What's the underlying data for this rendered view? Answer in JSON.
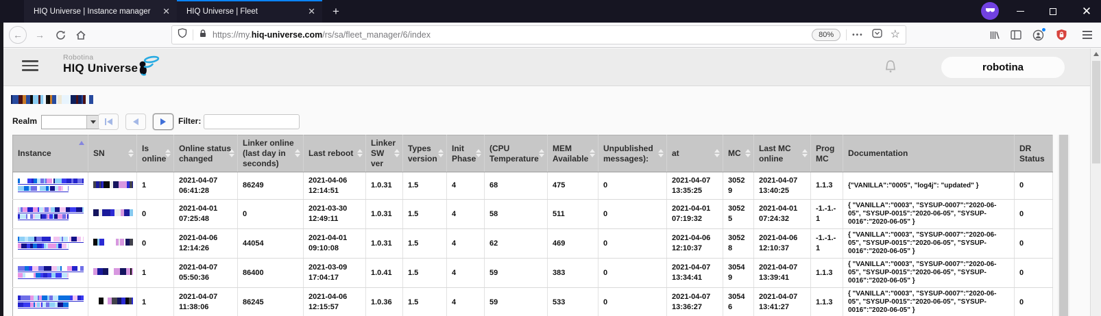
{
  "browser": {
    "tabs": [
      {
        "title": "HIQ Universe | Instance manager"
      },
      {
        "title": "HIQ Universe | Fleet"
      }
    ],
    "url": {
      "scheme": "https://",
      "subdomain": "my.",
      "domain": "hiq-universe.com",
      "path": "/rs/sa/fleet_manager/6/index"
    },
    "zoom_level": "80%"
  },
  "app": {
    "brand_top": "Robotina",
    "brand_main": "HIQ Universe",
    "account_button": "robotina"
  },
  "controls": {
    "realm_label": "Realm",
    "realm_value": "",
    "filter_label": "Filter:",
    "filter_value": ""
  },
  "table": {
    "columns": [
      {
        "key": "instance",
        "label": "Instance",
        "sortable": true,
        "sorted": "asc",
        "redacted": true
      },
      {
        "key": "sn",
        "label": "SN",
        "sortable": true,
        "redacted": true
      },
      {
        "key": "is_online",
        "label": "Is online",
        "sortable": true
      },
      {
        "key": "online_status_changed",
        "label": "Online status changed",
        "sortable": true
      },
      {
        "key": "linker_online",
        "label": "Linker online (last day in seconds)",
        "sortable": true
      },
      {
        "key": "last_reboot",
        "label": "Last reboot",
        "sortable": true
      },
      {
        "key": "linker_sw_ver",
        "label": "Linker SW ver",
        "sortable": true
      },
      {
        "key": "types_version",
        "label": "Types version",
        "sortable": true
      },
      {
        "key": "init_phase",
        "label": "Init Phase",
        "sortable": true
      },
      {
        "key": "cpu_temperature",
        "label": "(CPU Temperature",
        "sortable": true
      },
      {
        "key": "mem_available",
        "label": "MEM Available",
        "sortable": true
      },
      {
        "key": "unpublished_messages",
        "label": "Unpublished messages):",
        "sortable": true
      },
      {
        "key": "at",
        "label": "at",
        "sortable": true
      },
      {
        "key": "mc",
        "label": "MC",
        "sortable": true
      },
      {
        "key": "last_mc_online",
        "label": "Last MC online",
        "sortable": true
      },
      {
        "key": "prog_mc",
        "label": "Prog MC",
        "sortable": false
      },
      {
        "key": "documentation",
        "label": "Documentation",
        "sortable": false
      },
      {
        "key": "dr_status",
        "label": "DR Status",
        "sortable": false
      }
    ],
    "rows": [
      {
        "is_online": "1",
        "online_status_changed": "2021-04-07 06:41:28",
        "linker_online": "86249",
        "last_reboot": "2021-04-06 12:14:51",
        "linker_sw_ver": "1.0.31",
        "types_version": "1.5",
        "init_phase": "4",
        "cpu_temperature": "68",
        "mem_available": "475",
        "unpublished_messages": "0",
        "at": "2021-04-07 13:35:25",
        "mc": "30529",
        "last_mc_online": "2021-04-07 13:40:25",
        "prog_mc": "1.1.3",
        "documentation": "{\"VANILLA\":\"0005\", \"log4j\": \"updated\" }",
        "dr_status": "0"
      },
      {
        "is_online": "0",
        "online_status_changed": "2021-04-01 07:25:48",
        "linker_online": "0",
        "last_reboot": "2021-03-30 12:49:11",
        "linker_sw_ver": "1.0.31",
        "types_version": "1.5",
        "init_phase": "4",
        "cpu_temperature": "58",
        "mem_available": "511",
        "unpublished_messages": "0",
        "at": "2021-04-01 07:19:32",
        "mc": "30525",
        "last_mc_online": "2021-04-01 07:24:32",
        "prog_mc": "-1.-1.-1",
        "documentation": "{ \"VANILLA\":\"0003\", \"SYSUP-0007\":\"2020-06-05\", \"SYSUP-0015\":\"2020-06-05\", \"SYSUP-0016\":\"2020-06-05\" }",
        "dr_status": "0"
      },
      {
        "is_online": "0",
        "online_status_changed": "2021-04-06 12:14:26",
        "linker_online": "44054",
        "last_reboot": "2021-04-01 09:10:08",
        "linker_sw_ver": "1.0.31",
        "types_version": "1.5",
        "init_phase": "4",
        "cpu_temperature": "62",
        "mem_available": "469",
        "unpublished_messages": "0",
        "at": "2021-04-06 12:10:37",
        "mc": "30528",
        "last_mc_online": "2021-04-06 12:10:37",
        "prog_mc": "-1.-1.-1",
        "documentation": "{ \"VANILLA\":\"0003\", \"SYSUP-0007\":\"2020-06-05\", \"SYSUP-0015\":\"2020-06-05\", \"SYSUP-0016\":\"2020-06-05\" }",
        "dr_status": "0"
      },
      {
        "is_online": "1",
        "online_status_changed": "2021-04-07 05:50:36",
        "linker_online": "86400",
        "last_reboot": "2021-03-09 17:04:17",
        "linker_sw_ver": "1.0.41",
        "types_version": "1.5",
        "init_phase": "4",
        "cpu_temperature": "59",
        "mem_available": "383",
        "unpublished_messages": "0",
        "at": "2021-04-07 13:34:41",
        "mc": "30549",
        "last_mc_online": "2021-04-07 13:39:41",
        "prog_mc": "1.1.3",
        "documentation": "{ \"VANILLA\":\"0003\", \"SYSUP-0007\":\"2020-06-05\", \"SYSUP-0015\":\"2020-06-05\", \"SYSUP-0016\":\"2020-06-05\" }",
        "dr_status": "0"
      },
      {
        "is_online": "1",
        "online_status_changed": "2021-04-07 11:38:06",
        "linker_online": "86245",
        "last_reboot": "2021-04-06 12:15:57",
        "linker_sw_ver": "1.0.36",
        "types_version": "1.5",
        "init_phase": "4",
        "cpu_temperature": "59",
        "mem_available": "533",
        "unpublished_messages": "0",
        "at": "2021-04-07 13:36:27",
        "mc": "30546",
        "last_mc_online": "2021-04-07 13:41:27",
        "prog_mc": "1.1.3",
        "documentation": "{ \"VANILLA\":\"0003\", \"SYSUP-0007\":\"2020-06-05\", \"SYSUP-0015\":\"2020-06-05\", \"SYSUP-0016\":\"2020-06-05\" }",
        "dr_status": "0"
      }
    ]
  },
  "colors": {
    "active_tab_accent": "#0a84ff",
    "logo_blue": "#29abe2",
    "link_blue": "#2a2ad0",
    "table_header_bg": "#c7c7c7",
    "mask_icon_purple": "#7141e1",
    "extension_shield_red": "#d7443e",
    "pagination_arrow_blue": "#3f6fd8"
  }
}
